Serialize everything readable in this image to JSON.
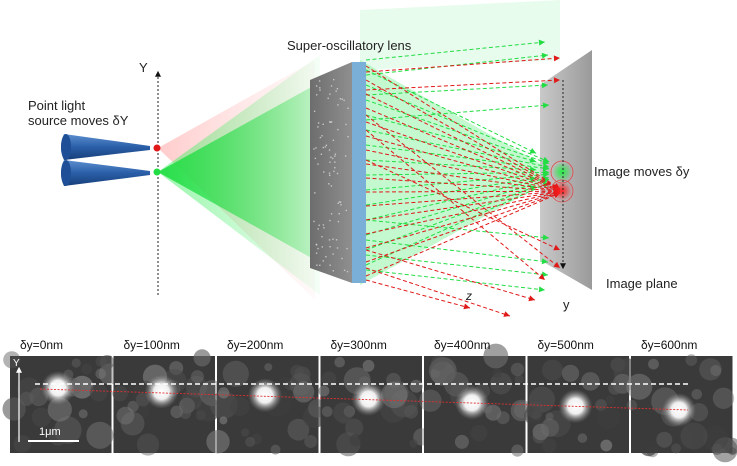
{
  "diagram": {
    "axis_label_Y": "Y",
    "source_label_line1": "Point light",
    "source_label_line2": "source moves δY",
    "lens_label": "Super-oscillatory lens",
    "image_moves_label": "Image moves δy",
    "image_plane_label": "Image plane",
    "z_label": "z",
    "y_label": "y",
    "colors": {
      "green": "#22dd44",
      "red": "#e01818",
      "cone": "#2a5fa8",
      "lens": "#7ab0d8"
    }
  },
  "strip": {
    "axis_label_Y": "Y",
    "scale_bar_label": "1μm",
    "panels": [
      {
        "label": "δy=0nm",
        "spot_offset": 0
      },
      {
        "label": "δy=100nm",
        "spot_offset": 100
      },
      {
        "label": "δy=200nm",
        "spot_offset": 200
      },
      {
        "label": "δy=300nm",
        "spot_offset": 300
      },
      {
        "label": "δy=400nm",
        "spot_offset": 400
      },
      {
        "label": "δy=500nm",
        "spot_offset": 500
      },
      {
        "label": "δy=600nm",
        "spot_offset": 600
      }
    ]
  }
}
